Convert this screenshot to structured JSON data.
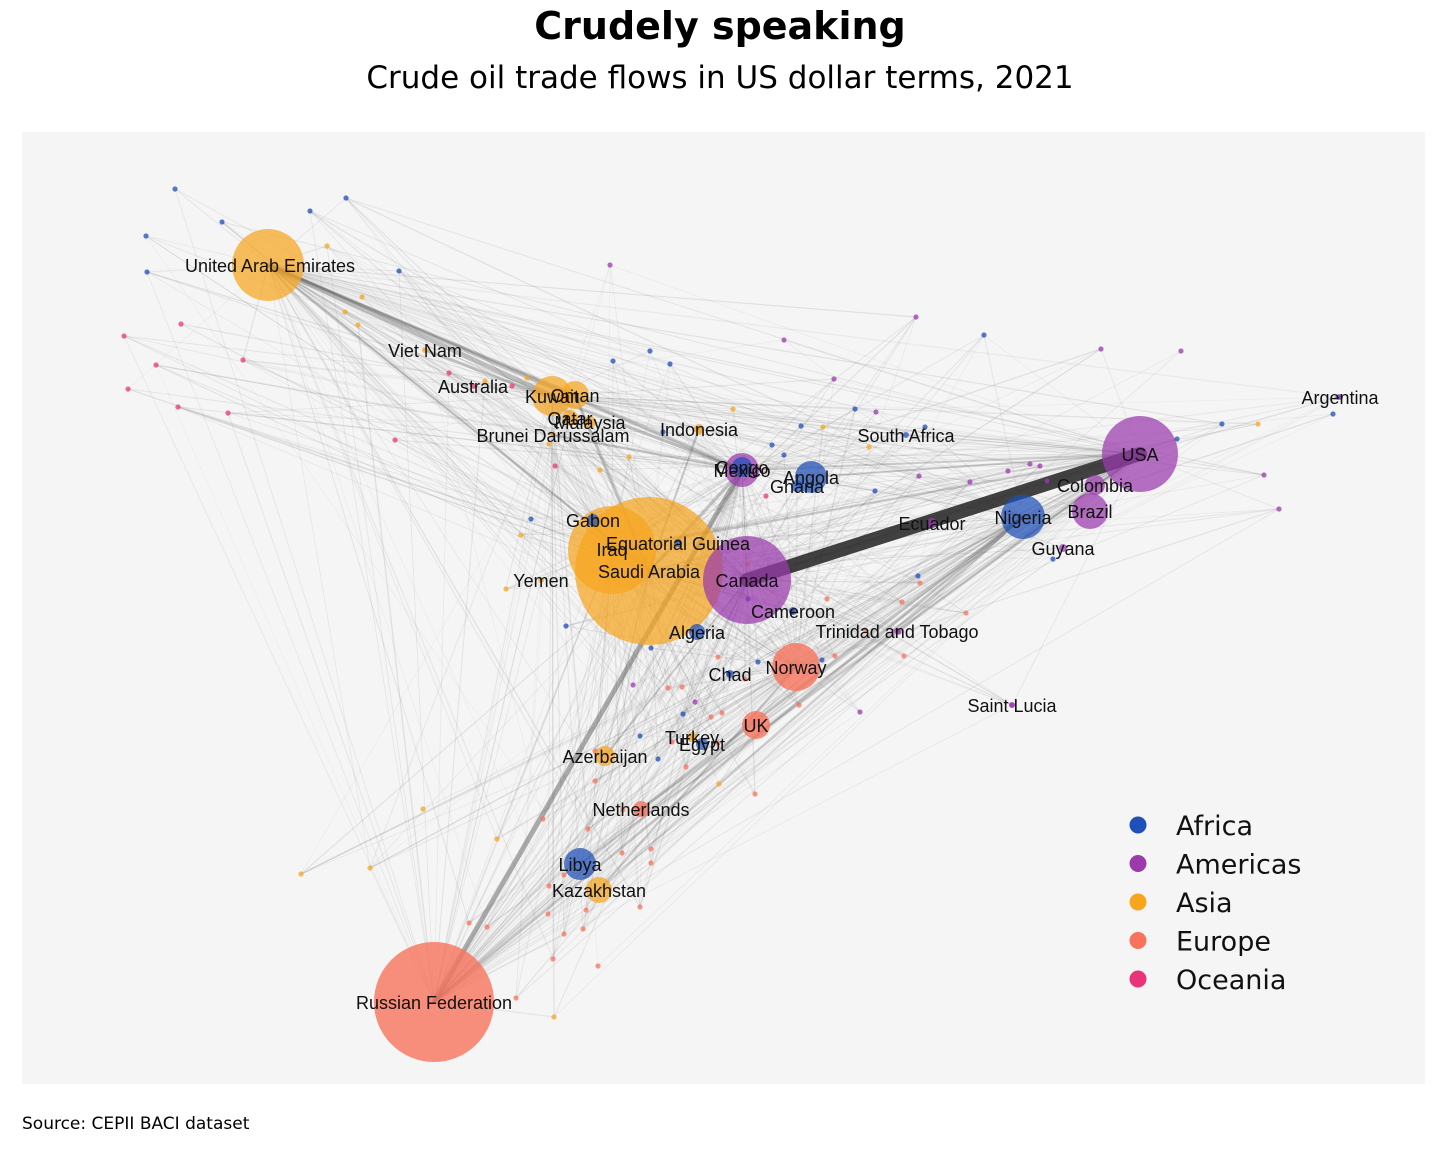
{
  "title": "Crudely speaking",
  "subtitle": "Crude oil trade flows in US dollar terms, 2021",
  "source": "Source: CEPII BACI dataset",
  "colors": {
    "Africa": "#1f4fb8",
    "Americas": "#9b3aad",
    "Asia": "#f7a51e",
    "Europe": "#f8735c",
    "Oceania": "#e8357a"
  },
  "legend": [
    {
      "label": "Africa",
      "color": "#1f4fb8"
    },
    {
      "label": "Americas",
      "color": "#9b3aad"
    },
    {
      "label": "Asia",
      "color": "#f7a51e"
    },
    {
      "label": "Europe",
      "color": "#f8735c"
    },
    {
      "label": "Oceania",
      "color": "#e8357a"
    }
  ],
  "chart_data": {
    "type": "network",
    "nodes": [
      {
        "label": "United Arab Emirates",
        "region": "Asia",
        "size": 36
      },
      {
        "label": "Viet Nam",
        "region": "Asia",
        "size": 3
      },
      {
        "label": "Australia",
        "region": "Oceania",
        "size": 3
      },
      {
        "label": "Kuwait",
        "region": "Asia",
        "size": 20
      },
      {
        "label": "Oman",
        "region": "Asia",
        "size": 14
      },
      {
        "label": "Qatar",
        "region": "Asia",
        "size": 8
      },
      {
        "label": "Malaysia",
        "region": "Asia",
        "size": 6
      },
      {
        "label": "Brunei Darussalam",
        "region": "Asia",
        "size": 3
      },
      {
        "label": "Indonesia",
        "region": "Asia",
        "size": 5
      },
      {
        "label": "South Africa",
        "region": "Africa",
        "size": 3
      },
      {
        "label": "Argentina",
        "region": "Americas",
        "size": 3
      },
      {
        "label": "USA",
        "region": "Americas",
        "size": 38
      },
      {
        "label": "Congo",
        "region": "Africa",
        "size": 10
      },
      {
        "label": "Mexico",
        "region": "Americas",
        "size": 17
      },
      {
        "label": "Angola",
        "region": "Africa",
        "size": 16
      },
      {
        "label": "Ghana",
        "region": "Africa",
        "size": 6
      },
      {
        "label": "Colombia",
        "region": "Americas",
        "size": 10
      },
      {
        "label": "Nigeria",
        "region": "Africa",
        "size": 22
      },
      {
        "label": "Brazil",
        "region": "Americas",
        "size": 18
      },
      {
        "label": "Ecuador",
        "region": "Americas",
        "size": 5
      },
      {
        "label": "Guyana",
        "region": "Americas",
        "size": 4
      },
      {
        "label": "Gabon",
        "region": "Africa",
        "size": 6
      },
      {
        "label": "Equatorial Guinea",
        "region": "Africa",
        "size": 4
      },
      {
        "label": "Iraq",
        "region": "Asia",
        "size": 44
      },
      {
        "label": "Saudi Arabia",
        "region": "Asia",
        "size": 74
      },
      {
        "label": "Canada",
        "region": "Americas",
        "size": 44
      },
      {
        "label": "Yemen",
        "region": "Asia",
        "size": 3
      },
      {
        "label": "Cameroon",
        "region": "Africa",
        "size": 4
      },
      {
        "label": "Algeria",
        "region": "Africa",
        "size": 8
      },
      {
        "label": "Trinidad and Tobago",
        "region": "Americas",
        "size": 3
      },
      {
        "label": "Norway",
        "region": "Europe",
        "size": 24
      },
      {
        "label": "Chad",
        "region": "Africa",
        "size": 4
      },
      {
        "label": "Saint Lucia",
        "region": "Americas",
        "size": 3
      },
      {
        "label": "UK",
        "region": "Europe",
        "size": 14
      },
      {
        "label": "Turkey",
        "region": "Asia",
        "size": 5
      },
      {
        "label": "Egypt",
        "region": "Africa",
        "size": 6
      },
      {
        "label": "Azerbaijan",
        "region": "Asia",
        "size": 10
      },
      {
        "label": "Netherlands",
        "region": "Europe",
        "size": 8
      },
      {
        "label": "Libya",
        "region": "Africa",
        "size": 16
      },
      {
        "label": "Kazakhstan",
        "region": "Asia",
        "size": 13
      },
      {
        "label": "Russian Federation",
        "region": "Europe",
        "size": 60
      }
    ],
    "legend_title": "",
    "legend_placement": "bottom-right"
  }
}
